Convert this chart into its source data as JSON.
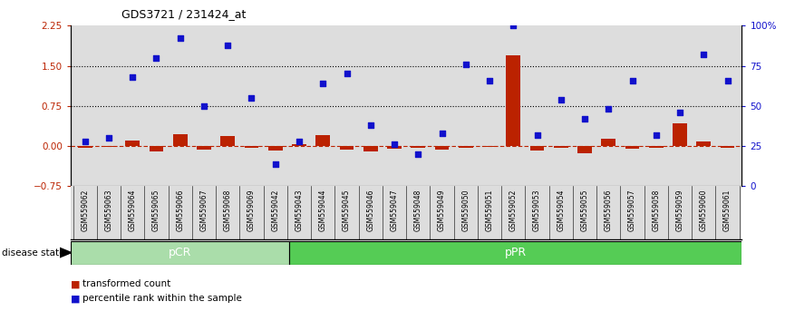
{
  "title": "GDS3721 / 231424_at",
  "samples": [
    "GSM559062",
    "GSM559063",
    "GSM559064",
    "GSM559065",
    "GSM559066",
    "GSM559067",
    "GSM559068",
    "GSM559069",
    "GSM559042",
    "GSM559043",
    "GSM559044",
    "GSM559045",
    "GSM559046",
    "GSM559047",
    "GSM559048",
    "GSM559049",
    "GSM559050",
    "GSM559051",
    "GSM559052",
    "GSM559053",
    "GSM559054",
    "GSM559055",
    "GSM559056",
    "GSM559057",
    "GSM559058",
    "GSM559059",
    "GSM559060",
    "GSM559061"
  ],
  "transformed_count": [
    -0.04,
    -0.02,
    0.1,
    -0.1,
    0.22,
    -0.06,
    0.18,
    -0.04,
    -0.09,
    0.04,
    0.2,
    -0.07,
    -0.1,
    -0.05,
    -0.04,
    -0.07,
    -0.04,
    -0.02,
    1.7,
    -0.09,
    -0.04,
    -0.13,
    0.14,
    -0.05,
    -0.03,
    0.42,
    0.08,
    -0.04
  ],
  "percentile_rank": [
    28,
    30,
    68,
    80,
    92,
    50,
    88,
    55,
    14,
    28,
    64,
    70,
    38,
    26,
    20,
    33,
    76,
    66,
    100,
    32,
    54,
    42,
    48,
    66,
    32,
    46,
    82,
    66
  ],
  "group": [
    "pCR",
    "pCR",
    "pCR",
    "pCR",
    "pCR",
    "pCR",
    "pCR",
    "pCR",
    "pCR",
    "pPR",
    "pPR",
    "pPR",
    "pPR",
    "pPR",
    "pPR",
    "pPR",
    "pPR",
    "pPR",
    "pPR",
    "pPR",
    "pPR",
    "pPR",
    "pPR",
    "pPR",
    "pPR",
    "pPR",
    "pPR",
    "pPR"
  ],
  "bar_color": "#bb2200",
  "dot_color": "#1111cc",
  "pCR_color": "#aaddaa",
  "pPR_color": "#55cc55",
  "bg_color": "#dddddd",
  "ylim_left": [
    -0.75,
    2.25
  ],
  "ylim_right": [
    0,
    100
  ],
  "yticks_left": [
    -0.75,
    0.0,
    0.75,
    1.5,
    2.25
  ],
  "yticks_right": [
    0,
    25,
    50,
    75,
    100
  ],
  "hlines": [
    0.75,
    1.5
  ],
  "zero_line": 0.0,
  "pcr_count": 9,
  "n_samples": 28
}
